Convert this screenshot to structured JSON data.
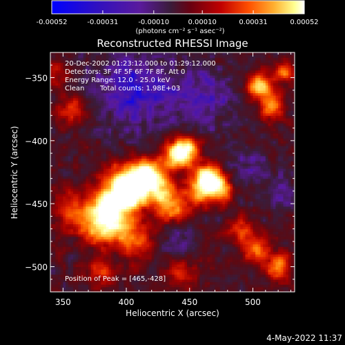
{
  "colorbar": {
    "ticks": [
      "-0.00052",
      "-0.00031",
      "-0.00010",
      "0.00010",
      "0.00031",
      "0.00052"
    ],
    "unit_label": "(photons cm⁻² s⁻¹ asec⁻²)",
    "range": [
      -0.00052,
      0.00052
    ]
  },
  "chart_data": {
    "type": "heatmap",
    "title": "Reconstructed RHESSI Image",
    "xlabel": "Heliocentric X (arcsec)",
    "ylabel": "Heliocentric Y (arcsec)",
    "xlim": [
      340,
      533
    ],
    "ylim": [
      -520,
      -330
    ],
    "xticks": [
      350,
      400,
      450,
      500
    ],
    "yticks": [
      -350,
      -400,
      -450,
      -500
    ],
    "annotations": {
      "time": "20-Dec-2002 01:23:12.000 to 01:29:12.000",
      "detectors": "Detectors: 3F 4F 5F 6F 7F 8F, Att 0",
      "energy": "Energy Range: 12.0 - 25.0 keV",
      "method": "Clean",
      "counts": "Total counts: 1.98E+03",
      "peak": "Position of Peak = [465,-428]"
    },
    "peak": [
      465,
      -428
    ],
    "blobs": [
      {
        "x": 385,
        "y": -452,
        "amp": 1.0,
        "sigma": 9
      },
      {
        "x": 403,
        "y": -443,
        "amp": 0.95,
        "sigma": 9
      },
      {
        "x": 415,
        "y": -425,
        "amp": 0.85,
        "sigma": 8
      },
      {
        "x": 398,
        "y": -432,
        "amp": 0.7,
        "sigma": 11
      },
      {
        "x": 425,
        "y": -437,
        "amp": 0.7,
        "sigma": 9
      },
      {
        "x": 440,
        "y": -412,
        "amp": 0.8,
        "sigma": 8
      },
      {
        "x": 448,
        "y": -405,
        "amp": 0.7,
        "sigma": 7
      },
      {
        "x": 465,
        "y": -428,
        "amp": 1.0,
        "sigma": 7
      },
      {
        "x": 475,
        "y": -438,
        "amp": 0.75,
        "sigma": 7
      },
      {
        "x": 458,
        "y": -440,
        "amp": 0.65,
        "sigma": 8
      },
      {
        "x": 435,
        "y": -452,
        "amp": 0.6,
        "sigma": 9
      },
      {
        "x": 378,
        "y": -470,
        "amp": 0.6,
        "sigma": 9
      },
      {
        "x": 395,
        "y": -468,
        "amp": 0.55,
        "sigma": 9
      },
      {
        "x": 360,
        "y": -455,
        "amp": 0.4,
        "sigma": 12
      },
      {
        "x": 410,
        "y": -480,
        "amp": 0.45,
        "sigma": 10
      },
      {
        "x": 505,
        "y": -356,
        "amp": 0.75,
        "sigma": 7
      },
      {
        "x": 515,
        "y": -372,
        "amp": 0.6,
        "sigma": 7
      },
      {
        "x": 525,
        "y": -345,
        "amp": 0.55,
        "sigma": 6
      },
      {
        "x": 502,
        "y": -485,
        "amp": 0.55,
        "sigma": 8
      },
      {
        "x": 520,
        "y": -500,
        "amp": 0.6,
        "sigma": 7
      },
      {
        "x": 490,
        "y": -470,
        "amp": 0.4,
        "sigma": 7
      },
      {
        "x": 358,
        "y": -375,
        "amp": 0.45,
        "sigma": 8
      },
      {
        "x": 345,
        "y": -345,
        "amp": 0.3,
        "sigma": 7
      },
      {
        "x": 380,
        "y": -505,
        "amp": 0.35,
        "sigma": 9
      },
      {
        "x": 445,
        "y": -505,
        "amp": 0.35,
        "sigma": 9
      }
    ],
    "holes": [
      {
        "x": 405,
        "y": -360,
        "amp": 0.7,
        "sigma": 22
      },
      {
        "x": 460,
        "y": -365,
        "amp": 0.5,
        "sigma": 18
      },
      {
        "x": 495,
        "y": -420,
        "amp": 0.35,
        "sigma": 14
      },
      {
        "x": 440,
        "y": -480,
        "amp": 0.3,
        "sigma": 12
      },
      {
        "x": 523,
        "y": -440,
        "amp": 0.3,
        "sigma": 10
      }
    ],
    "colormap": [
      "#0000ff",
      "#3010c0",
      "#5a1a9c",
      "#3a1c3a",
      "#5a0a14",
      "#a00000",
      "#e02000",
      "#ff7000",
      "#ffc040",
      "#ffff9c",
      "#ffffff"
    ]
  },
  "footer": {
    "date": "4-May-2022 11:37"
  }
}
